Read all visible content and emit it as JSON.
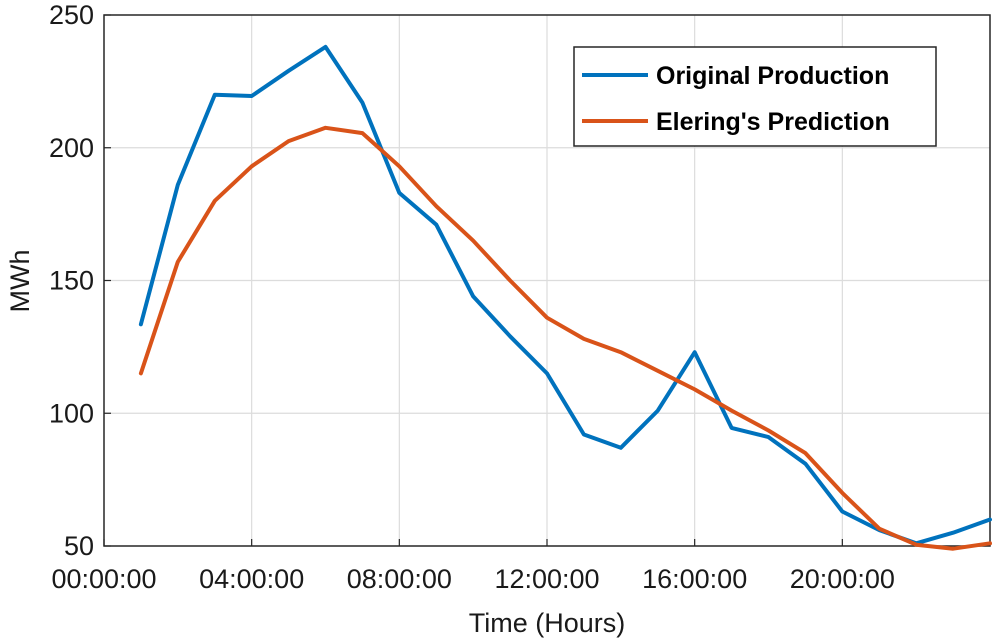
{
  "chart_data": {
    "type": "line",
    "title": "",
    "xlabel": "Time (Hours)",
    "ylabel": "MWh",
    "xlim": [
      "00:00:00",
      "23:59:59"
    ],
    "ylim": [
      50,
      250
    ],
    "x_tick_labels": [
      "00:00:00",
      "04:00:00",
      "08:00:00",
      "12:00:00",
      "16:00:00",
      "20:00:00"
    ],
    "y_tick_labels": [
      "50",
      "100",
      "150",
      "200",
      "250"
    ],
    "grid": true,
    "legend_position": "top-right",
    "x": [
      "01:00:00",
      "02:00:00",
      "03:00:00",
      "04:00:00",
      "05:00:00",
      "06:00:00",
      "07:00:00",
      "08:00:00",
      "09:00:00",
      "10:00:00",
      "11:00:00",
      "12:00:00",
      "13:00:00",
      "14:00:00",
      "15:00:00",
      "16:00:00",
      "17:00:00",
      "18:00:00",
      "19:00:00",
      "20:00:00",
      "21:00:00",
      "22:00:00",
      "23:00:00",
      "24:00:00"
    ],
    "series": [
      {
        "name": "Original Production",
        "color": "#0072BD",
        "values": [
          133.5,
          186,
          220,
          219.5,
          229,
          238,
          217,
          183,
          171,
          144,
          129,
          115,
          92,
          87,
          101,
          123,
          94.5,
          91,
          81,
          63,
          56,
          51,
          55,
          60
        ]
      },
      {
        "name": "Elering's Prediction",
        "color": "#D95319",
        "values": [
          115,
          157,
          180,
          193,
          202.5,
          207.5,
          205.5,
          193,
          178,
          165,
          150,
          136,
          128,
          123,
          116,
          109,
          101,
          93.5,
          85,
          70,
          56.5,
          50.5,
          49,
          51
        ]
      }
    ]
  }
}
